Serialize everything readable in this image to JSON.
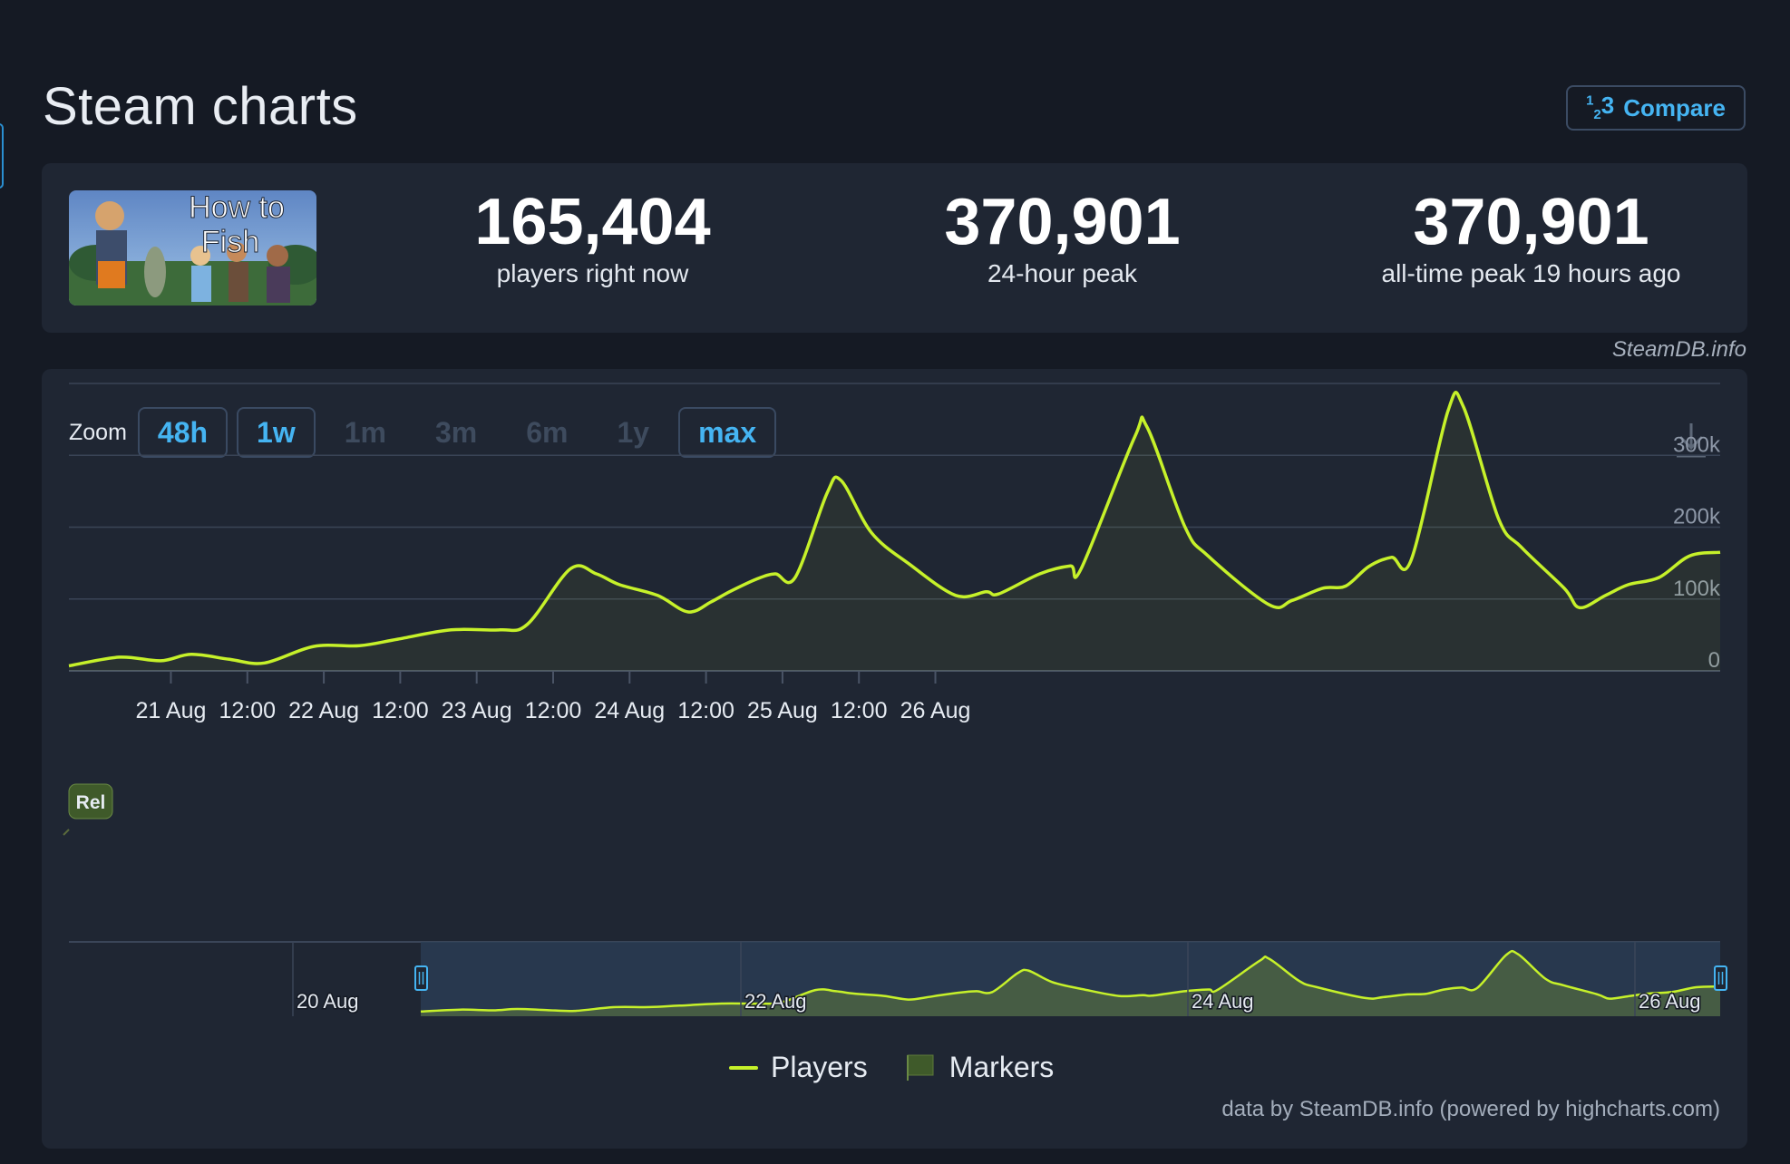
{
  "page": {
    "title": "Steam charts"
  },
  "compare": {
    "label": "Compare",
    "icon": "numbers-icon"
  },
  "game": {
    "name": "How to Fish",
    "thumb_text": [
      "How to",
      "Fish"
    ]
  },
  "stats": {
    "now": {
      "value": "165,404",
      "label": "players right now"
    },
    "peak24": {
      "value": "370,901",
      "label": "24-hour peak"
    },
    "alltime": {
      "value": "370,901",
      "label": "all-time peak 19 hours ago"
    }
  },
  "credit": "SteamDB.info",
  "zoom": {
    "label": "Zoom",
    "buttons": [
      {
        "label": "48h",
        "state": "active"
      },
      {
        "label": "1w",
        "state": "active"
      },
      {
        "label": "1m",
        "state": "disabled"
      },
      {
        "label": "3m",
        "state": "disabled"
      },
      {
        "label": "6m",
        "state": "disabled"
      },
      {
        "label": "1y",
        "state": "disabled"
      },
      {
        "label": "max",
        "state": "active"
      }
    ]
  },
  "chart_data": {
    "type": "line",
    "title": "",
    "series": [
      {
        "name": "Players",
        "color": "#c6f12a",
        "x_days_start": "20 Aug 08:00",
        "points": [
          [
            0.0,
            7000
          ],
          [
            0.33,
            19000
          ],
          [
            0.6,
            14000
          ],
          [
            0.8,
            23000
          ],
          [
            1.05,
            16000
          ],
          [
            1.28,
            11000
          ],
          [
            1.6,
            34000
          ],
          [
            1.9,
            35000
          ],
          [
            2.15,
            44000
          ],
          [
            2.5,
            57000
          ],
          [
            2.82,
            57000
          ],
          [
            3.0,
            65000
          ],
          [
            3.28,
            142000
          ],
          [
            3.45,
            135000
          ],
          [
            3.6,
            120000
          ],
          [
            3.85,
            105000
          ],
          [
            4.05,
            82000
          ],
          [
            4.2,
            96000
          ],
          [
            4.32,
            110000
          ],
          [
            4.5,
            128000
          ],
          [
            4.62,
            135000
          ],
          [
            4.75,
            130000
          ],
          [
            4.96,
            248000
          ],
          [
            5.05,
            265000
          ],
          [
            5.25,
            192000
          ],
          [
            5.5,
            148000
          ],
          [
            5.8,
            105000
          ],
          [
            6.0,
            110000
          ],
          [
            6.08,
            107000
          ],
          [
            6.35,
            135000
          ],
          [
            6.55,
            146000
          ],
          [
            6.62,
            142000
          ],
          [
            6.97,
            325000
          ],
          [
            7.05,
            340000
          ],
          [
            7.3,
            200000
          ],
          [
            7.45,
            160000
          ],
          [
            7.85,
            92000
          ],
          [
            8.0,
            98000
          ],
          [
            8.2,
            115000
          ],
          [
            8.35,
            118000
          ],
          [
            8.5,
            145000
          ],
          [
            8.65,
            158000
          ],
          [
            8.78,
            155000
          ],
          [
            9.02,
            362000
          ],
          [
            9.12,
            368000
          ],
          [
            9.35,
            212000
          ],
          [
            9.5,
            172000
          ],
          [
            9.78,
            115000
          ],
          [
            9.88,
            88000
          ],
          [
            10.05,
            105000
          ],
          [
            10.2,
            120000
          ],
          [
            10.4,
            130000
          ],
          [
            10.6,
            160000
          ],
          [
            10.8,
            165000
          ]
        ]
      }
    ],
    "markers": [
      {
        "label": "Rel"
      }
    ],
    "x_ticks": [
      "21 Aug",
      "12:00",
      "22 Aug",
      "12:00",
      "23 Aug",
      "12:00",
      "24 Aug",
      "12:00",
      "25 Aug",
      "12:00",
      "26 Aug"
    ],
    "y_ticks": [
      "0",
      "100k",
      "200k",
      "300k"
    ],
    "ylim": [
      0,
      400000
    ],
    "grid": true,
    "legend": [
      "Players",
      "Markers"
    ]
  },
  "navigator": {
    "labels": [
      "20 Aug",
      "22 Aug",
      "24 Aug",
      "26 Aug"
    ]
  },
  "footer": {
    "powered_by": "data by SteamDB.info (powered by highcharts.com)"
  }
}
